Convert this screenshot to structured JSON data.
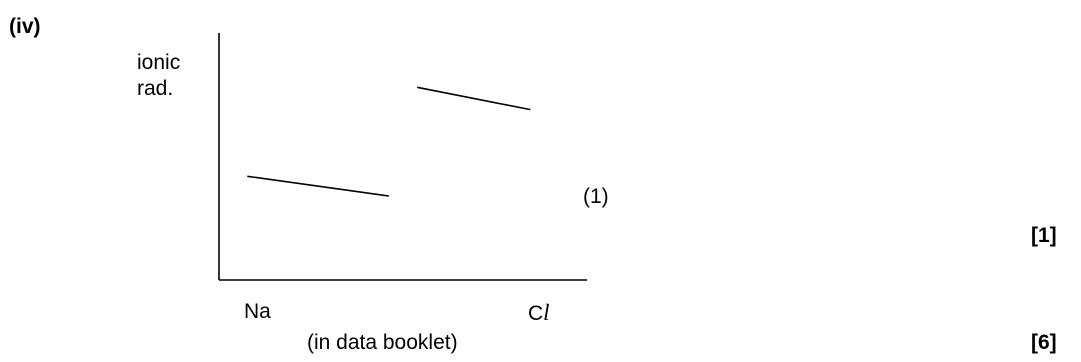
{
  "question": {
    "part_label": "(iv)",
    "y_axis_label_line1": "ionic",
    "y_axis_label_line2": "rad.",
    "x_start_label": "Na",
    "x_end_label_prefix": "C",
    "x_end_label_suffix": "l",
    "note": "(in data booklet)",
    "inline_mark": "(1)",
    "part_total": "[1]",
    "question_total": "[6]"
  },
  "chart_data": {
    "type": "line",
    "title": "",
    "xlabel": "",
    "ylabel": "ionic rad.",
    "x_labels": [
      "Na",
      "Cl"
    ],
    "series": [
      {
        "x": [
          0,
          0.5
        ],
        "y": [
          0.42,
          0.34
        ]
      },
      {
        "x": [
          0.6,
          1.0
        ],
        "y": [
          0.78,
          0.69
        ]
      }
    ],
    "xlim": [
      -0.1,
      1.2
    ],
    "ylim": [
      0,
      1
    ],
    "grid": false,
    "legend": "none"
  }
}
